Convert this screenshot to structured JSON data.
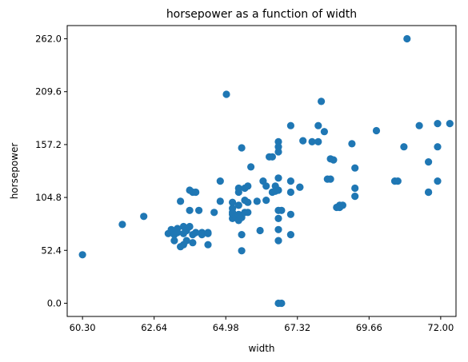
{
  "chart_data": {
    "type": "scatter",
    "title": "horsepower as a function of width",
    "xlabel": "width",
    "ylabel": "horsepower",
    "xlim": [
      59.8,
      72.5
    ],
    "ylim": [
      -13.1,
      275.1
    ],
    "xticks": [
      "60.30",
      "62.64",
      "64.98",
      "67.32",
      "69.66",
      "72.00"
    ],
    "yticks": [
      "0.0",
      "52.4",
      "104.8",
      "157.2",
      "209.6",
      "262.0"
    ],
    "grid": false,
    "marker_color": "#1f77b4",
    "points": [
      {
        "x": 60.3,
        "y": 48
      },
      {
        "x": 61.6,
        "y": 78
      },
      {
        "x": 62.3,
        "y": 86
      },
      {
        "x": 63.1,
        "y": 69
      },
      {
        "x": 63.2,
        "y": 73
      },
      {
        "x": 63.3,
        "y": 62
      },
      {
        "x": 63.3,
        "y": 68
      },
      {
        "x": 63.4,
        "y": 70
      },
      {
        "x": 63.4,
        "y": 74
      },
      {
        "x": 63.5,
        "y": 56
      },
      {
        "x": 63.5,
        "y": 101
      },
      {
        "x": 63.6,
        "y": 69
      },
      {
        "x": 63.6,
        "y": 76
      },
      {
        "x": 63.6,
        "y": 58
      },
      {
        "x": 63.7,
        "y": 62
      },
      {
        "x": 63.7,
        "y": 72
      },
      {
        "x": 63.8,
        "y": 92
      },
      {
        "x": 63.8,
        "y": 112
      },
      {
        "x": 63.8,
        "y": 76
      },
      {
        "x": 63.9,
        "y": 68
      },
      {
        "x": 63.9,
        "y": 60
      },
      {
        "x": 63.9,
        "y": 110
      },
      {
        "x": 64.0,
        "y": 110
      },
      {
        "x": 64.0,
        "y": 70
      },
      {
        "x": 64.1,
        "y": 92
      },
      {
        "x": 64.2,
        "y": 68
      },
      {
        "x": 64.2,
        "y": 70
      },
      {
        "x": 64.4,
        "y": 69
      },
      {
        "x": 64.4,
        "y": 58
      },
      {
        "x": 64.4,
        "y": 70
      },
      {
        "x": 64.6,
        "y": 90
      },
      {
        "x": 64.8,
        "y": 101
      },
      {
        "x": 64.8,
        "y": 121
      },
      {
        "x": 65.0,
        "y": 207
      },
      {
        "x": 65.2,
        "y": 84
      },
      {
        "x": 65.2,
        "y": 88
      },
      {
        "x": 65.2,
        "y": 90
      },
      {
        "x": 65.2,
        "y": 94
      },
      {
        "x": 65.2,
        "y": 100
      },
      {
        "x": 65.3,
        "y": 86
      },
      {
        "x": 65.4,
        "y": 82
      },
      {
        "x": 65.4,
        "y": 88
      },
      {
        "x": 65.4,
        "y": 97
      },
      {
        "x": 65.4,
        "y": 110
      },
      {
        "x": 65.4,
        "y": 114
      },
      {
        "x": 65.5,
        "y": 85
      },
      {
        "x": 65.5,
        "y": 68
      },
      {
        "x": 65.5,
        "y": 52
      },
      {
        "x": 65.5,
        "y": 154
      },
      {
        "x": 65.6,
        "y": 90
      },
      {
        "x": 65.6,
        "y": 102
      },
      {
        "x": 65.6,
        "y": 114
      },
      {
        "x": 65.7,
        "y": 116
      },
      {
        "x": 65.7,
        "y": 100
      },
      {
        "x": 65.7,
        "y": 90
      },
      {
        "x": 65.8,
        "y": 135
      },
      {
        "x": 66.0,
        "y": 101
      },
      {
        "x": 66.1,
        "y": 72
      },
      {
        "x": 66.2,
        "y": 121
      },
      {
        "x": 66.3,
        "y": 116
      },
      {
        "x": 66.3,
        "y": 102
      },
      {
        "x": 66.4,
        "y": 145
      },
      {
        "x": 66.5,
        "y": 145
      },
      {
        "x": 66.5,
        "y": 110
      },
      {
        "x": 66.6,
        "y": 111
      },
      {
        "x": 66.6,
        "y": 116
      },
      {
        "x": 66.7,
        "y": 112
      },
      {
        "x": 66.7,
        "y": 124
      },
      {
        "x": 66.7,
        "y": 84
      },
      {
        "x": 66.7,
        "y": 92
      },
      {
        "x": 66.7,
        "y": 73
      },
      {
        "x": 66.7,
        "y": 62
      },
      {
        "x": 66.7,
        "y": 0
      },
      {
        "x": 66.7,
        "y": 150
      },
      {
        "x": 66.7,
        "y": 155
      },
      {
        "x": 66.7,
        "y": 160
      },
      {
        "x": 66.8,
        "y": 0
      },
      {
        "x": 66.8,
        "y": 92
      },
      {
        "x": 67.1,
        "y": 121
      },
      {
        "x": 67.1,
        "y": 110
      },
      {
        "x": 67.1,
        "y": 88
      },
      {
        "x": 67.1,
        "y": 68
      },
      {
        "x": 67.1,
        "y": 176
      },
      {
        "x": 67.4,
        "y": 115
      },
      {
        "x": 67.4,
        "y": 115
      },
      {
        "x": 67.5,
        "y": 161
      },
      {
        "x": 67.8,
        "y": 160
      },
      {
        "x": 68.0,
        "y": 176
      },
      {
        "x": 68.0,
        "y": 160
      },
      {
        "x": 68.1,
        "y": 200
      },
      {
        "x": 68.2,
        "y": 170
      },
      {
        "x": 68.3,
        "y": 123
      },
      {
        "x": 68.4,
        "y": 123
      },
      {
        "x": 68.4,
        "y": 143
      },
      {
        "x": 68.5,
        "y": 142
      },
      {
        "x": 68.6,
        "y": 95
      },
      {
        "x": 68.7,
        "y": 97
      },
      {
        "x": 68.7,
        "y": 95
      },
      {
        "x": 68.8,
        "y": 97
      },
      {
        "x": 69.1,
        "y": 158
      },
      {
        "x": 69.2,
        "y": 106
      },
      {
        "x": 69.2,
        "y": 134
      },
      {
        "x": 69.2,
        "y": 114
      },
      {
        "x": 69.9,
        "y": 171
      },
      {
        "x": 70.5,
        "y": 121
      },
      {
        "x": 70.6,
        "y": 121
      },
      {
        "x": 70.8,
        "y": 155
      },
      {
        "x": 70.9,
        "y": 262
      },
      {
        "x": 71.3,
        "y": 176
      },
      {
        "x": 71.6,
        "y": 140
      },
      {
        "x": 71.6,
        "y": 110
      },
      {
        "x": 71.6,
        "y": 110
      },
      {
        "x": 71.9,
        "y": 155
      },
      {
        "x": 71.9,
        "y": 121
      },
      {
        "x": 71.9,
        "y": 178
      },
      {
        "x": 72.3,
        "y": 178
      }
    ]
  }
}
